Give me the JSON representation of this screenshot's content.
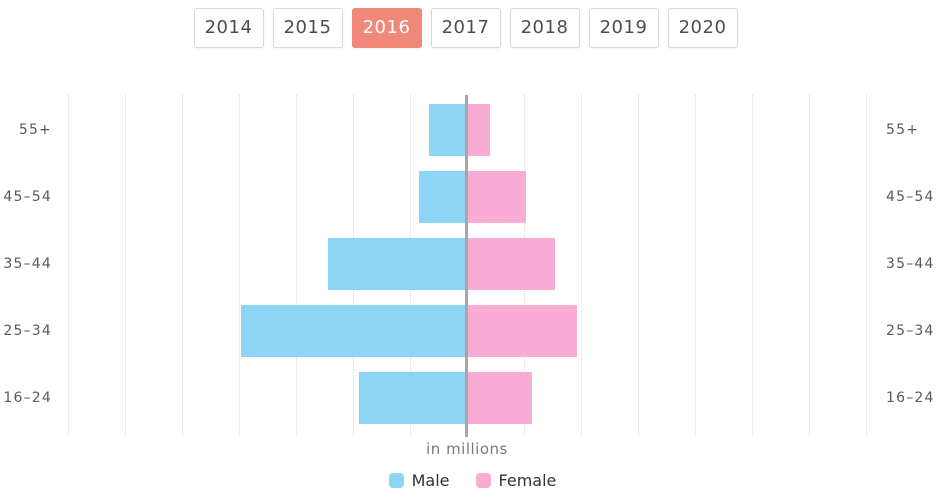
{
  "tabs": {
    "years": [
      "2014",
      "2015",
      "2016",
      "2017",
      "2018",
      "2019",
      "2020"
    ],
    "selected_year": "2016"
  },
  "chart_data": {
    "type": "bar",
    "variant": "population_pyramid",
    "title": "",
    "categories": [
      "55+",
      "45–54",
      "35–44",
      "25–34",
      "16–24"
    ],
    "series": [
      {
        "name": "Male",
        "side": "left",
        "color": "#8ED5F5",
        "values": [
          0.67,
          0.84,
          2.44,
          3.96,
          1.89
        ]
      },
      {
        "name": "Female",
        "side": "right",
        "color": "#F9ACD4",
        "values": [
          0.4,
          1.04,
          1.54,
          1.93,
          1.14
        ]
      }
    ],
    "unit_label": "in millions",
    "axis": {
      "numeric_tick_labels_shown": false,
      "grid": "dotted-vertical",
      "grid_interval_millions": 1,
      "gridlines_each_side_of_axis": 7,
      "category_labels": "both-sides"
    },
    "legend": {
      "position": "bottom-center",
      "entries": [
        "Male",
        "Female"
      ]
    }
  },
  "colors": {
    "selected_tab_bg": "#F1897B",
    "selected_tab_text": "#FFFFFF",
    "tab_border": "#D9D9D9",
    "tab_text": "#4D4D4D",
    "male": "#8ED5F5",
    "female": "#F9ACD4",
    "axis_line": "#A6A6A6",
    "gridline": "#DADADA",
    "age_label_text": "#5A5A5A",
    "unit_text": "#7A7A7A",
    "legend_text": "#333333"
  }
}
